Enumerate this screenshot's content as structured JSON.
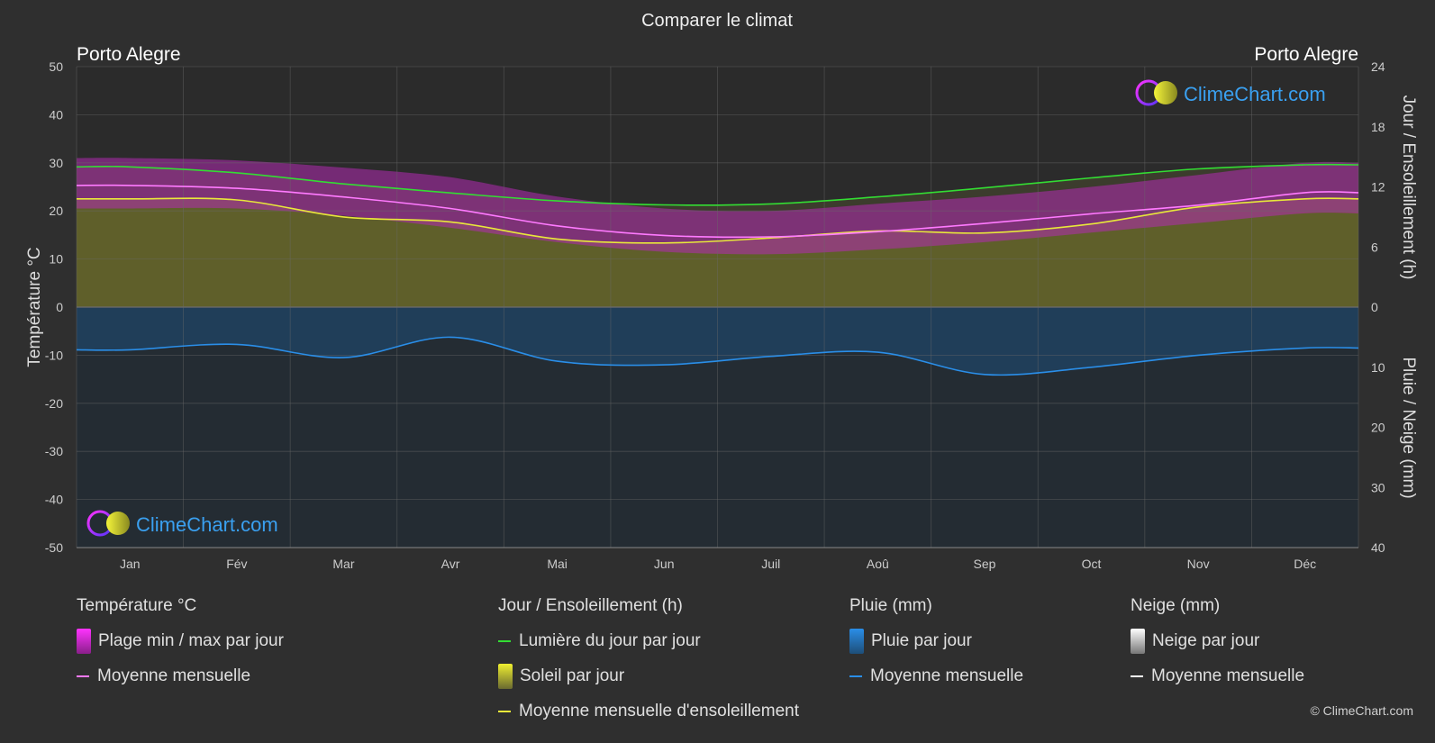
{
  "chart_data": {
    "type": "line",
    "title": "Comparer le climat",
    "location_left": "Porto Alegre",
    "location_right": "Porto Alegre",
    "brand": "ClimeChart.com",
    "copyright": "© ClimeChart.com",
    "categories": [
      "Jan",
      "Fév",
      "Mar",
      "Avr",
      "Mai",
      "Jun",
      "Juil",
      "Aoû",
      "Sep",
      "Oct",
      "Nov",
      "Déc"
    ],
    "y_left": {
      "label": "Température °C",
      "ylim": [
        -50,
        50
      ],
      "ticks": [
        "50",
        "40",
        "30",
        "20",
        "10",
        "0",
        "-10",
        "-20",
        "-30",
        "-40",
        "-50"
      ]
    },
    "y_right_top": {
      "label": "Jour / Ensoleillement (h)",
      "ylim": [
        0,
        24
      ],
      "ticks": [
        "24",
        "18",
        "12",
        "6",
        "0"
      ]
    },
    "y_right_bottom": {
      "label": "Pluie / Neige (mm)",
      "ylim": [
        0,
        40
      ],
      "ticks": [
        "10",
        "20",
        "30",
        "40"
      ]
    },
    "series": [
      {
        "name": "Lumière du jour par jour",
        "unit": "h",
        "color": "#33dd33",
        "values": [
          14.0,
          13.4,
          12.3,
          11.4,
          10.6,
          10.2,
          10.3,
          11.0,
          11.9,
          12.9,
          13.8,
          14.2
        ]
      },
      {
        "name": "Moyenne mensuelle d'ensoleillement",
        "unit": "h",
        "color": "#e8e83a",
        "values": [
          10.8,
          10.7,
          9.0,
          8.5,
          6.8,
          6.4,
          6.9,
          7.6,
          7.4,
          8.3,
          10.0,
          10.8
        ]
      },
      {
        "name": "Moyenne mensuelle (température)",
        "unit": "°C",
        "color": "#ff7aff",
        "values": [
          25.3,
          24.7,
          22.9,
          20.5,
          16.9,
          14.9,
          14.6,
          15.7,
          17.4,
          19.4,
          21.2,
          23.8
        ]
      },
      {
        "name": "Plage min / max par jour",
        "unit": "°C",
        "color": "#cc22cc",
        "min": [
          20.5,
          20.5,
          19.0,
          16.5,
          13.5,
          11.5,
          11.0,
          12.0,
          13.5,
          15.5,
          17.5,
          19.5
        ],
        "max": [
          31.0,
          30.5,
          29.0,
          27.0,
          23.0,
          20.5,
          20.0,
          21.5,
          23.0,
          25.0,
          27.5,
          30.0
        ]
      },
      {
        "name": "Moyenne mensuelle (pluie)",
        "unit": "mm",
        "color": "#2a8ee8",
        "values": [
          7.1,
          6.2,
          8.4,
          5.0,
          9.0,
          9.6,
          8.2,
          7.5,
          11.2,
          10.0,
          8.0,
          6.8
        ]
      }
    ],
    "legend": [
      {
        "heading": "Température °C",
        "items": [
          {
            "kind": "gradient",
            "colors": [
              "#ff33ff",
              "#8a1f8a"
            ],
            "label": "Plage min / max par jour"
          },
          {
            "kind": "line",
            "color": "#ff7aff",
            "label": "Moyenne mensuelle"
          }
        ]
      },
      {
        "heading": "Jour / Ensoleillement (h)",
        "items": [
          {
            "kind": "line",
            "color": "#33dd33",
            "label": "Lumière du jour par jour"
          },
          {
            "kind": "gradient",
            "colors": [
              "#f0f030",
              "#6a6a30"
            ],
            "label": "Soleil par jour"
          },
          {
            "kind": "line",
            "color": "#e8e83a",
            "label": "Moyenne mensuelle d'ensoleillement"
          }
        ]
      },
      {
        "heading": "Pluie (mm)",
        "items": [
          {
            "kind": "gradient",
            "colors": [
              "#2a8ee8",
              "#1e4e78"
            ],
            "label": "Pluie par jour"
          },
          {
            "kind": "line",
            "color": "#2a8ee8",
            "label": "Moyenne mensuelle"
          }
        ]
      },
      {
        "heading": "Neige (mm)",
        "items": [
          {
            "kind": "gradient",
            "colors": [
              "#ffffff",
              "#777777"
            ],
            "label": "Neige par jour"
          },
          {
            "kind": "line",
            "color": "#ffffff",
            "label": "Moyenne mensuelle"
          }
        ]
      }
    ]
  }
}
